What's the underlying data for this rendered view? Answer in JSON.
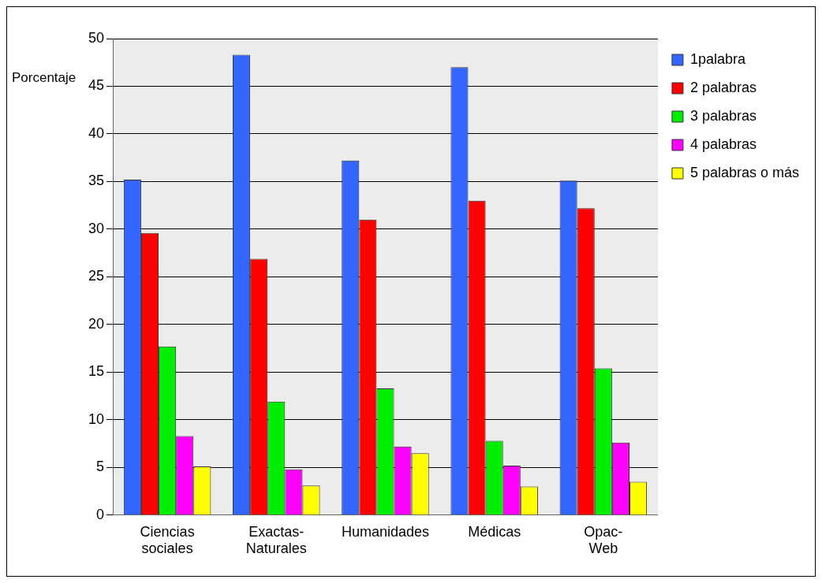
{
  "chart_data": {
    "type": "bar",
    "ylabel": "Porcentaje",
    "categories": [
      "Ciencias sociales",
      "Exactas-Naturales",
      "Humanidades",
      "Médicas",
      "Opac-Web"
    ],
    "series": [
      {
        "name": "1palabra",
        "color": "#3366ff",
        "values": [
          35.2,
          48.3,
          37.2,
          47.0,
          35.1
        ]
      },
      {
        "name": "2 palabras",
        "color": "#ff0000",
        "values": [
          29.6,
          26.9,
          31.0,
          33.0,
          32.2
        ]
      },
      {
        "name": "3 palabras",
        "color": "#00ee00",
        "values": [
          17.7,
          11.9,
          13.3,
          7.8,
          15.4
        ]
      },
      {
        "name": "4 palabras",
        "color": "#ff00ff",
        "values": [
          8.3,
          4.8,
          7.2,
          5.2,
          7.6
        ]
      },
      {
        "name": "5 palabras o más",
        "color": "#ffff00",
        "values": [
          5.1,
          3.1,
          6.5,
          3.0,
          3.5
        ]
      }
    ],
    "ylim": [
      0,
      50
    ],
    "yticks": [
      0,
      5,
      10,
      15,
      20,
      25,
      30,
      35,
      40,
      45,
      50
    ],
    "grid": "y",
    "legend": "top right"
  }
}
